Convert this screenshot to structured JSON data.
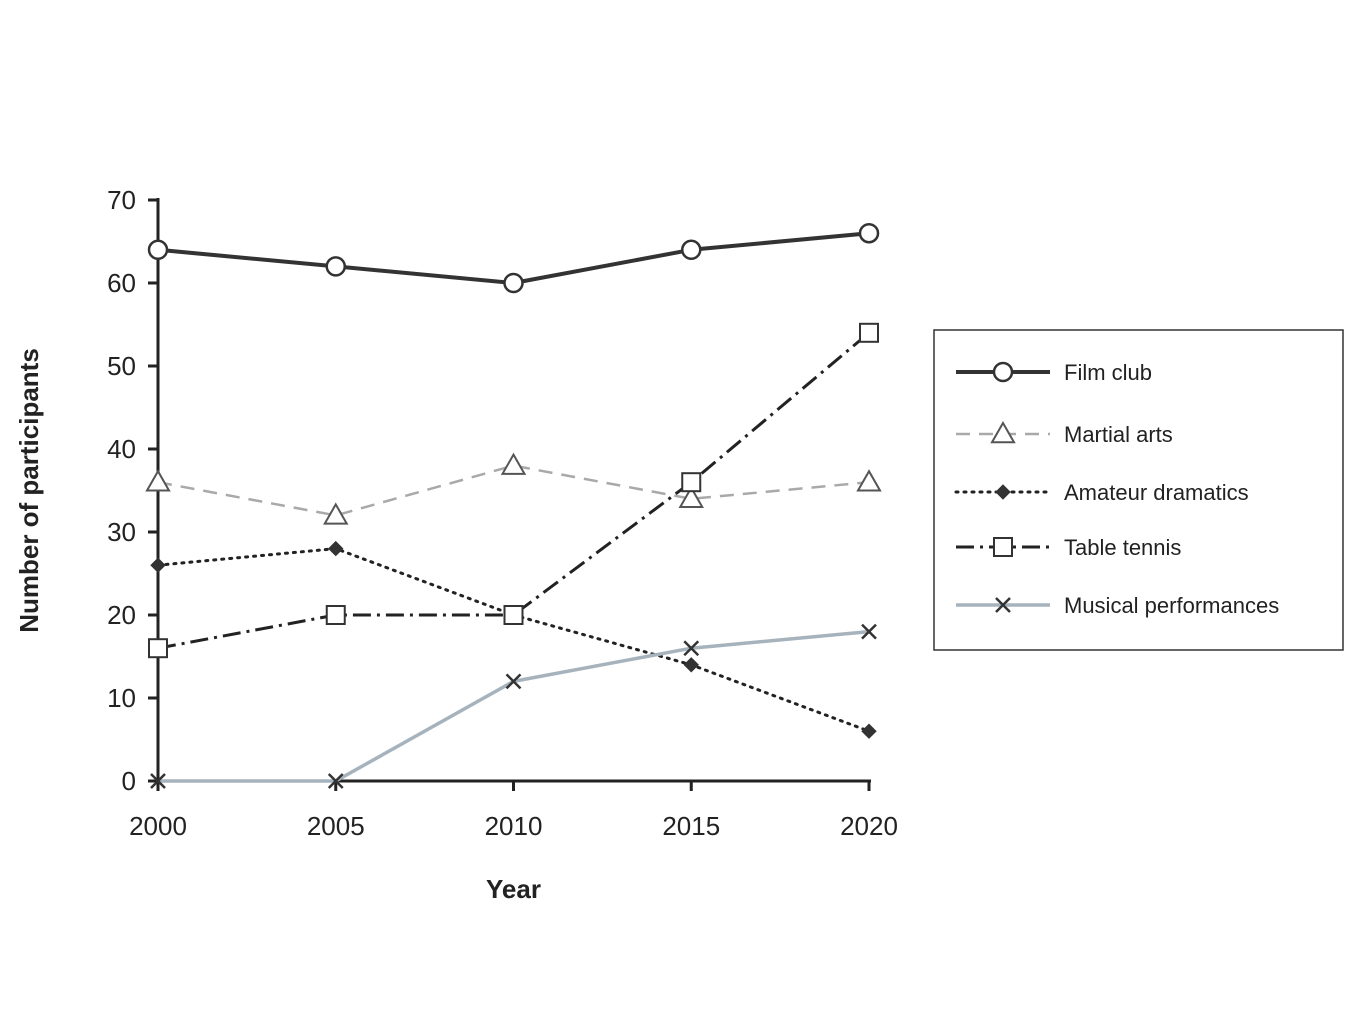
{
  "chart_data": {
    "type": "line",
    "title": "",
    "xlabel": "Year",
    "ylabel": "Number of participants",
    "x": [
      2000,
      2005,
      2010,
      2015,
      2020
    ],
    "x_tick_labels": [
      "2000",
      "2005",
      "2010",
      "2015",
      "2020"
    ],
    "y_ticks": [
      0,
      10,
      20,
      30,
      40,
      50,
      60,
      70
    ],
    "y_tick_labels": [
      "0",
      "10",
      "20",
      "30",
      "40",
      "50",
      "60",
      "70"
    ],
    "ylim": [
      0,
      70
    ],
    "grid": false,
    "legend_position": "right",
    "series": [
      {
        "name": "Film club",
        "values": [
          64,
          62,
          60,
          64,
          66
        ],
        "marker": "open-circle",
        "line_style": "solid-thick",
        "color": "#333333"
      },
      {
        "name": "Martial arts",
        "values": [
          36,
          32,
          38,
          34,
          36
        ],
        "marker": "open-triangle",
        "line_style": "dashed",
        "color": "#a9a9a9"
      },
      {
        "name": "Amateur dramatics",
        "values": [
          26,
          28,
          20,
          14,
          6
        ],
        "marker": "filled-diamond",
        "line_style": "dotted",
        "color": "#222222"
      },
      {
        "name": "Table tennis",
        "values": [
          16,
          20,
          20,
          36,
          54
        ],
        "marker": "open-square",
        "line_style": "dash-dot",
        "color": "#222222"
      },
      {
        "name": "Musical performances",
        "values": [
          0,
          0,
          12,
          16,
          18
        ],
        "marker": "cross",
        "line_style": "solid",
        "color": "#a6b3bd"
      }
    ]
  }
}
